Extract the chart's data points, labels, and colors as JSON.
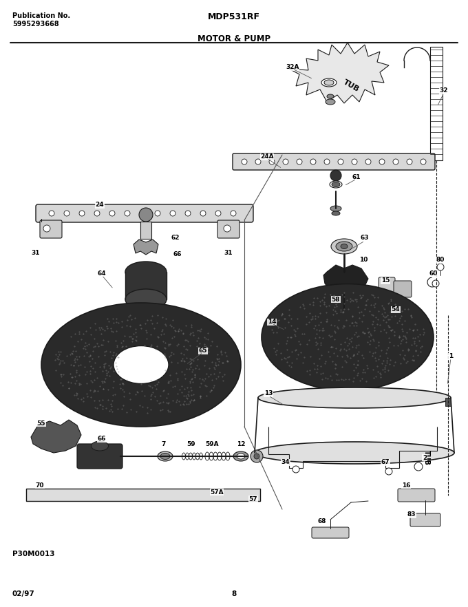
{
  "title": "MDP531RF",
  "subtitle": "MOTOR & PUMP",
  "pub_label": "Publication No.",
  "pub_number": "5995293668",
  "date": "02/97",
  "page": "8",
  "code": "P30M0013",
  "bg_color": "#ffffff",
  "lc": "#1a1a1a",
  "tc": "#000000",
  "fig_width": 6.8,
  "fig_height": 8.82,
  "dpi": 100
}
